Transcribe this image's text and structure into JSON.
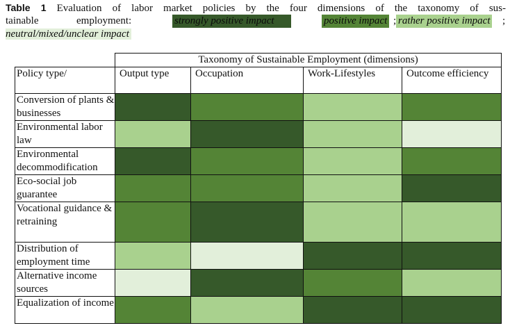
{
  "caption": {
    "label": "Table 1",
    "text_part1": "Evaluation of labor market policies by the four dimensions of the taxonomy of sus-",
    "text_part2a": "tainable",
    "text_part2b": "employment:",
    "legend": {
      "strongly_positive": "strongly positive impact",
      "positive": "positive impact",
      "rather_positive": "rather positive impact",
      "neutral": "neutral/mixed/unclear impact",
      "sep1": ";",
      "sep2": ";"
    }
  },
  "colors": {
    "strongly_positive": "#36592a",
    "positive": "#548436",
    "rather_positive": "#a9d18e",
    "neutral": "#e2efda"
  },
  "table": {
    "span_header": "Taxonomy of Sustainable Employment (dimensions)",
    "row_header_label": "Policy type/",
    "columns": [
      "Output type",
      "Occupation",
      "Work-Lifestyles",
      "Outcome efficiency"
    ],
    "rows": [
      {
        "label": "Conversion of plants & businesses",
        "levels": [
          "strongly_positive",
          "positive",
          "rather_positive",
          "positive"
        ]
      },
      {
        "label": "Environmental labor law",
        "levels": [
          "rather_positive",
          "strongly_positive",
          "rather_positive",
          "neutral"
        ]
      },
      {
        "label": "Environmental decommodification",
        "levels": [
          "strongly_positive",
          "positive",
          "rather_positive",
          "positive"
        ]
      },
      {
        "label": "Eco-social job guarantee",
        "levels": [
          "positive",
          "positive",
          "rather_positive",
          "strongly_positive"
        ]
      },
      {
        "label": "Vocational guidance & retraining",
        "levels": [
          "positive",
          "strongly_positive",
          "rather_positive",
          "rather_positive"
        ]
      },
      {
        "label": "Distribution of employment time",
        "levels": [
          "rather_positive",
          "neutral",
          "strongly_positive",
          "strongly_positive"
        ]
      },
      {
        "label": "Alternative income sources",
        "levels": [
          "neutral",
          "strongly_positive",
          "positive",
          "rather_positive"
        ]
      },
      {
        "label": "Equalization of income",
        "levels": [
          "positive",
          "rather_positive",
          "strongly_positive",
          "strongly_positive"
        ]
      }
    ]
  }
}
